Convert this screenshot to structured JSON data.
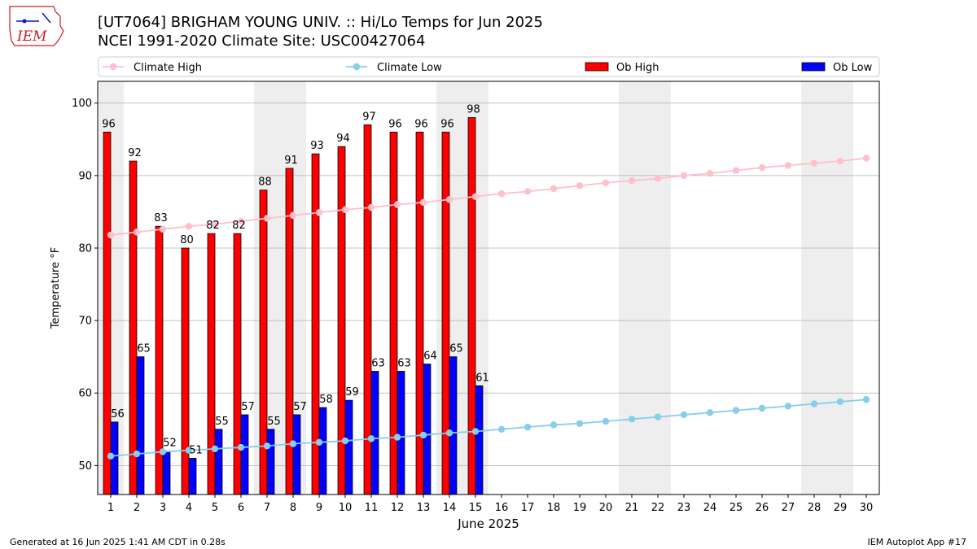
{
  "header": {
    "title_line1": "[UT7064] BRIGHAM YOUNG UNIV. :: Hi/Lo Temps for Jun 2025",
    "title_line2": "NCEI 1991-2020 Climate Site: USC00427064"
  },
  "logo": {
    "text": "IEM"
  },
  "footer": {
    "left": "Generated at 16 Jun 2025 1:41 AM CDT in 0.28s",
    "right": "IEM Autoplot App #17"
  },
  "colors": {
    "ob_high": "#ff0000",
    "ob_low": "#0000ff",
    "climate_high": "#ffc0cb",
    "climate_low": "#87ceeb",
    "weekend_band": "#eeeeee",
    "grid": "#b0b0b0"
  },
  "chart_data": {
    "type": "bar",
    "xlabel": "June 2025",
    "ylabel": "Temperature °F",
    "ylim": [
      46,
      103
    ],
    "yticks": [
      50,
      60,
      70,
      80,
      90,
      100
    ],
    "grid": "horizontal",
    "legend_position": "top",
    "days": [
      1,
      2,
      3,
      4,
      5,
      6,
      7,
      8,
      9,
      10,
      11,
      12,
      13,
      14,
      15,
      16,
      17,
      18,
      19,
      20,
      21,
      22,
      23,
      24,
      25,
      26,
      27,
      28,
      29,
      30
    ],
    "shaded_days": [
      1,
      7,
      8,
      14,
      15,
      21,
      22,
      28,
      29
    ],
    "series": [
      {
        "name": "Climate High",
        "kind": "line",
        "values": [
          81.8,
          82.2,
          82.6,
          83.0,
          83.3,
          83.7,
          84.1,
          84.5,
          84.9,
          85.3,
          85.6,
          86.0,
          86.3,
          86.7,
          87.1,
          87.5,
          87.8,
          88.2,
          88.6,
          89.0,
          89.3,
          89.6,
          90.0,
          90.3,
          90.7,
          91.1,
          91.4,
          91.7,
          92.0,
          92.4
        ]
      },
      {
        "name": "Climate Low",
        "kind": "line",
        "values": [
          51.3,
          51.6,
          51.9,
          52.1,
          52.3,
          52.5,
          52.7,
          53.0,
          53.2,
          53.4,
          53.7,
          53.9,
          54.2,
          54.5,
          54.7,
          55.0,
          55.3,
          55.6,
          55.8,
          56.1,
          56.4,
          56.7,
          57.0,
          57.3,
          57.6,
          57.9,
          58.2,
          58.5,
          58.8,
          59.1
        ]
      },
      {
        "name": "Ob High",
        "kind": "bar",
        "values": [
          96,
          92,
          83,
          80,
          82,
          82,
          88,
          91,
          93,
          94,
          97,
          96,
          96,
          96,
          98
        ]
      },
      {
        "name": "Ob Low",
        "kind": "bar",
        "values": [
          56,
          65,
          52,
          51,
          55,
          57,
          55,
          57,
          58,
          59,
          63,
          63,
          64,
          65,
          61
        ]
      }
    ]
  }
}
